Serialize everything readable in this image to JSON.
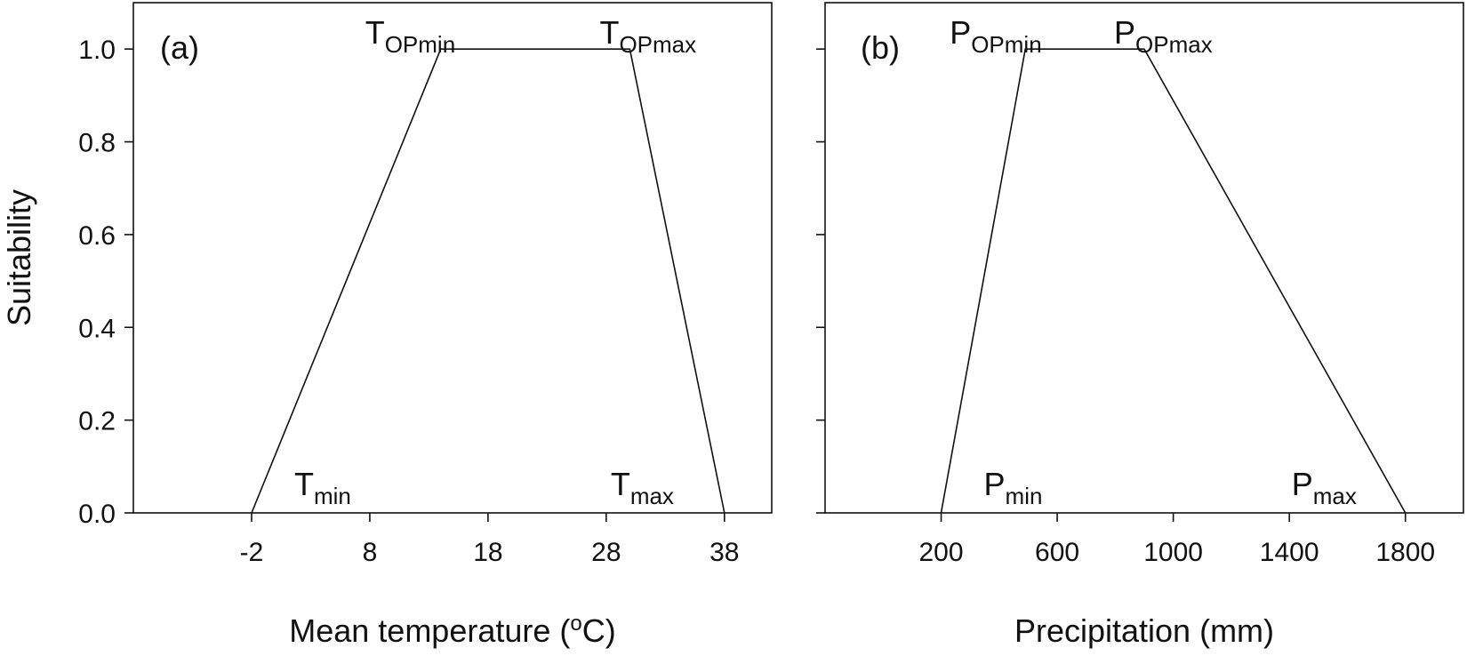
{
  "chart_data": [
    {
      "type": "line",
      "panel_label": "(a)",
      "title": "",
      "xlabel_prefix": "Mean temperature (",
      "xlabel_sup": "o",
      "xlabel_suffix": "C)",
      "ylabel": "Suitability",
      "xlim": [
        -12,
        42
      ],
      "ylim": [
        0,
        1.1
      ],
      "xticks": [
        -2,
        8,
        18,
        28,
        38
      ],
      "yticks": [
        0.0,
        0.2,
        0.4,
        0.6,
        0.8,
        1.0
      ],
      "ytick_labels": [
        "0.0",
        "0.2",
        "0.4",
        "0.6",
        "0.8",
        "1.0"
      ],
      "grid": false,
      "series": [
        {
          "x": [
            -2,
            14,
            30,
            38
          ],
          "y": [
            0,
            1,
            1,
            0
          ]
        }
      ],
      "annotations": [
        {
          "base": "T",
          "sub": "OPmin",
          "x": 14,
          "y": 1.0
        },
        {
          "base": "T",
          "sub": "OPmax",
          "x": 30,
          "y": 1.0
        },
        {
          "base": "T",
          "sub": "min",
          "x": -2,
          "y": 0.0
        },
        {
          "base": "T",
          "sub": "max",
          "x": 38,
          "y": 0.0
        }
      ]
    },
    {
      "type": "line",
      "panel_label": "(b)",
      "title": "",
      "xlabel": "Precipitation (mm)",
      "xlim": [
        -200,
        2000
      ],
      "ylim": [
        0,
        1.1
      ],
      "xticks": [
        200,
        600,
        1000,
        1400,
        1800
      ],
      "yticks": [
        0.0,
        0.2,
        0.4,
        0.6,
        0.8,
        1.0
      ],
      "grid": false,
      "series": [
        {
          "x": [
            200,
            490,
            900,
            1800
          ],
          "y": [
            0,
            1,
            1,
            0
          ]
        }
      ],
      "annotations": [
        {
          "base": "P",
          "sub": "OPmin",
          "x": 490,
          "y": 1.0
        },
        {
          "base": "P",
          "sub": "OPmax",
          "x": 900,
          "y": 1.0
        },
        {
          "base": "P",
          "sub": "min",
          "x": 200,
          "y": 0.0
        },
        {
          "base": "P",
          "sub": "max",
          "x": 1800,
          "y": 0.0
        }
      ]
    }
  ]
}
